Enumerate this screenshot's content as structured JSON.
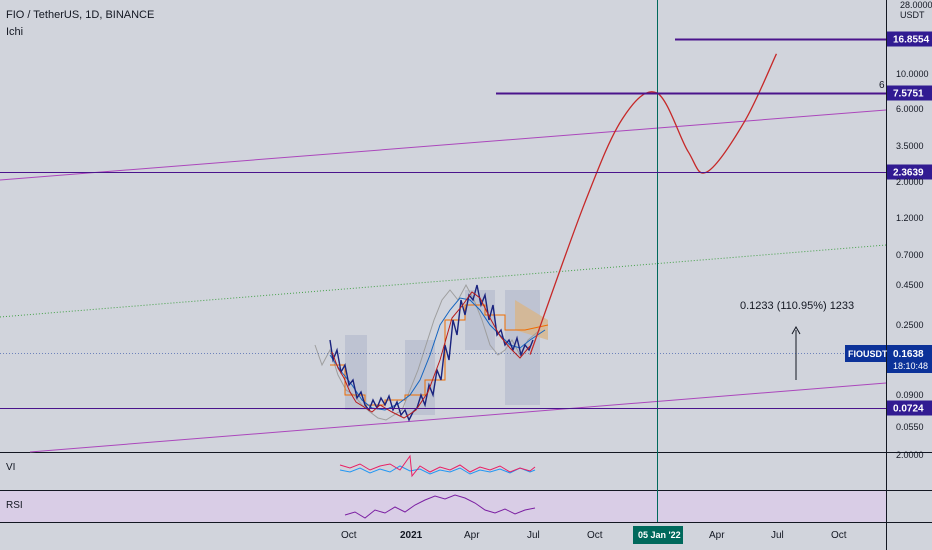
{
  "header": {
    "symbol_line": "FIO / TetherUS, 1D, BINANCE",
    "indicator": "Ichi"
  },
  "panes": {
    "vi_label": "VI",
    "rsi_label": "RSI"
  },
  "axis": {
    "currency": "USDT",
    "top_clipped": "28.0000",
    "ticks": [
      "10.0000",
      "6.0000",
      "3.5000",
      "2.0000",
      "1.2000",
      "0.7000",
      "0.4500",
      "0.2500",
      "0.0900",
      "0.0550"
    ],
    "vi_tick": "2.0000",
    "side_marker": "6"
  },
  "price_tags": [
    {
      "label": "16.8554",
      "value": 16.8554,
      "color": "#311b92"
    },
    {
      "label": "7.5751",
      "value": 7.5751,
      "color": "#311b92"
    },
    {
      "label": "2.3639",
      "value": 2.3639,
      "color": "#311b92"
    },
    {
      "label": "0.0724",
      "value": 0.0724,
      "color": "#311b92"
    }
  ],
  "current_price": {
    "symbol": "FIOUSDT",
    "price": "0.1638",
    "value": 0.1638,
    "countdown": "18:10:48",
    "color": "#0c3299"
  },
  "measure": {
    "label": "0.1233 (110.95%) 1233"
  },
  "time_axis": {
    "labels": [
      "Oct",
      "2021",
      "Apr",
      "Jul",
      "Oct",
      "05 Jan '22",
      "Apr",
      "Jul",
      "Oct"
    ],
    "highlight": "05 Jan '22"
  },
  "chart_data": {
    "type": "line",
    "scale": "log",
    "projection": {
      "color": "#c62828",
      "points": [
        [
          "2021-07-01",
          0.16
        ],
        [
          "2021-09-20",
          1.5
        ],
        [
          "2021-11-15",
          5.2
        ],
        [
          "2022-01-05",
          7.5751
        ],
        [
          "2022-02-20",
          3.2
        ],
        [
          "2022-03-20",
          2.3639
        ],
        [
          "2022-05-15",
          5.0
        ],
        [
          "2022-07-01",
          13.5
        ]
      ]
    },
    "levels": [
      16.8554,
      7.5751,
      2.3639,
      0.0724
    ],
    "colors": {
      "level": "#4a148c",
      "channel": "#ab47bc",
      "trend": "#43a047",
      "candle_up": "#1a237e",
      "candle_down": "#b71c1c"
    }
  }
}
